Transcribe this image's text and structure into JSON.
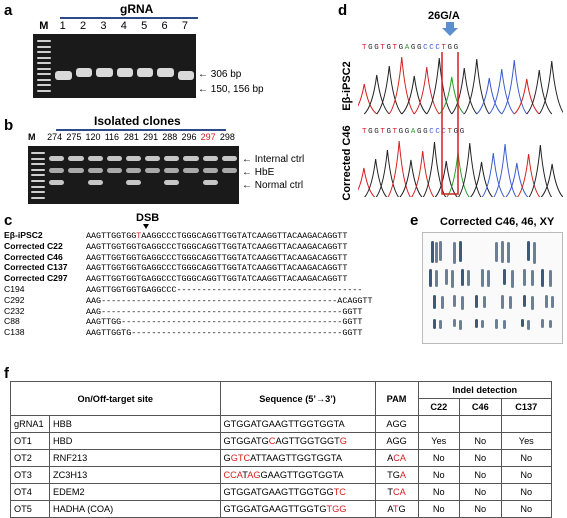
{
  "panels": {
    "a": {
      "letter": "a",
      "title": "gRNA",
      "lanes": [
        "M",
        "1",
        "2",
        "3",
        "4",
        "5",
        "6",
        "7"
      ],
      "band_labels": [
        "306 bp",
        "150, 156 bp"
      ]
    },
    "b": {
      "letter": "b",
      "title": "Isolated clones",
      "lanes": [
        "M",
        "274",
        "275",
        "120",
        "116",
        "281",
        "291",
        "288",
        "296",
        "297",
        "298"
      ],
      "highlight_lane": "297",
      "band_labels": [
        "Internal ctrl",
        "HbE",
        "Normal ctrl"
      ]
    },
    "c": {
      "letter": "c",
      "marker": "DSB",
      "rows": [
        {
          "name": "Eβ-iPSC2",
          "bold": true,
          "pre": "AAGTTGGTGG",
          "mut": "T",
          "post": "AAGGCCCTGGGCAGGTTGGTATCAAGGTTACAAGACAGGTT"
        },
        {
          "name": "Corrected C22",
          "bold": true,
          "pre": "AAGTTGGTGGTGAGGCCCTGGGCAGGTTGGTATCAAGGTTACAAGACAGGTT",
          "mut": "",
          "post": ""
        },
        {
          "name": "Corrected C46",
          "bold": true,
          "pre": "AAGTTGGTGGTGAGGCCCTGGGCAGGTTGGTATCAAGGTTACAAGACAGGTT",
          "mut": "",
          "post": ""
        },
        {
          "name": "Corrected C137",
          "bold": true,
          "pre": "AAGTTGGTGGTGAGGCCCTGGGCAGGTTGGTATCAAGGTTACAAGACAGGTT",
          "mut": "",
          "post": ""
        },
        {
          "name": "Corrected C297",
          "bold": true,
          "pre": "AAGTTGGTGGTGAGGCCCTGGGCAGGTTGGTATCAAGGTTACAAGACAGGTT",
          "mut": "",
          "post": ""
        },
        {
          "name": "C194",
          "bold": false,
          "pre": "AAGTTGGTGGTGAGGCCC-------------------------------------",
          "mut": "",
          "post": ""
        },
        {
          "name": "C292",
          "bold": false,
          "pre": "AAG-----------------------------------------------ACAGGTT",
          "mut": "",
          "post": ""
        },
        {
          "name": "C232",
          "bold": false,
          "pre": "AAG------------------------------------------------GGTT",
          "mut": "",
          "post": ""
        },
        {
          "name": "C88",
          "bold": false,
          "pre": "AAGTTGG--------------------------------------------GGTT",
          "mut": "",
          "post": ""
        },
        {
          "name": "C138",
          "bold": false,
          "pre": "AAGTTGGTG------------------------------------------GGTT",
          "mut": "",
          "post": ""
        }
      ]
    },
    "d": {
      "letter": "d",
      "mutation": "26G/A",
      "tracks": [
        {
          "label": "Eβ-iPSC2",
          "bases": "TGGTGTGAGGCCCTGG"
        },
        {
          "label": "Corrected C46",
          "bases": "TGGTGTGGAGGCCCTGG"
        }
      ]
    },
    "e": {
      "letter": "e",
      "title": "Corrected C46, 46, XY"
    },
    "f": {
      "letter": "f",
      "headers": {
        "site": "On/Off-target site",
        "seq": "Sequence (5’→3’)",
        "pam": "PAM",
        "indel": "Indel detection",
        "c22": "C22",
        "c46": "C46",
        "c137": "C137"
      },
      "rows": [
        {
          "id": "gRNA1",
          "gene": "HBB",
          "seq": [
            [
              "GTGGATGAAGTTGGTGGTA",
              0
            ]
          ],
          "pam": [
            [
              "AGG",
              0
            ]
          ],
          "c22": "",
          "c46": "",
          "c137": ""
        },
        {
          "id": "OT1",
          "gene": "HBD",
          "seq": [
            [
              "GTGGATG",
              0
            ],
            [
              "C",
              1
            ],
            [
              "AGTTGGTGGT",
              0
            ],
            [
              "G",
              1
            ]
          ],
          "pam": [
            [
              "AGG",
              0
            ]
          ],
          "c22": "Yes",
          "c46": "No",
          "c137": "Yes"
        },
        {
          "id": "OT2",
          "gene": "RNF213",
          "seq": [
            [
              "G",
              0
            ],
            [
              "GTC",
              1
            ],
            [
              "ATT",
              0
            ],
            [
              "AAGTTGGTGGTA",
              0
            ]
          ],
          "pam": [
            [
              "A",
              0
            ],
            [
              "CA",
              1
            ]
          ],
          "c22": "No",
          "c46": "No",
          "c137": "No"
        },
        {
          "id": "OT3",
          "gene": "ZC3H13",
          "seq": [
            [
              "CCA",
              1
            ],
            [
              "T",
              0
            ],
            [
              "AG",
              1
            ],
            [
              "GAAGTTGGTGGTA",
              0
            ]
          ],
          "pam": [
            [
              "TG",
              0
            ],
            [
              "A",
              1
            ]
          ],
          "c22": "No",
          "c46": "No",
          "c137": "No"
        },
        {
          "id": "OT4",
          "gene": "EDEM2",
          "seq": [
            [
              "GTGGATGAAGTTGGTGG",
              0
            ],
            [
              "TC",
              1
            ]
          ],
          "pam": [
            [
              "T",
              0
            ],
            [
              "CA",
              1
            ]
          ],
          "c22": "No",
          "c46": "No",
          "c137": "No"
        },
        {
          "id": "OT5",
          "gene": "HADHA (COA)",
          "seq": [
            [
              "GTGGATGAAGTTGGTG",
              0
            ],
            [
              "TGG",
              1
            ]
          ],
          "pam": [
            [
              "A",
              0
            ],
            [
              "T",
              1
            ],
            [
              "G",
              0
            ]
          ],
          "c22": "No",
          "c46": "No",
          "c137": "No"
        }
      ]
    }
  }
}
